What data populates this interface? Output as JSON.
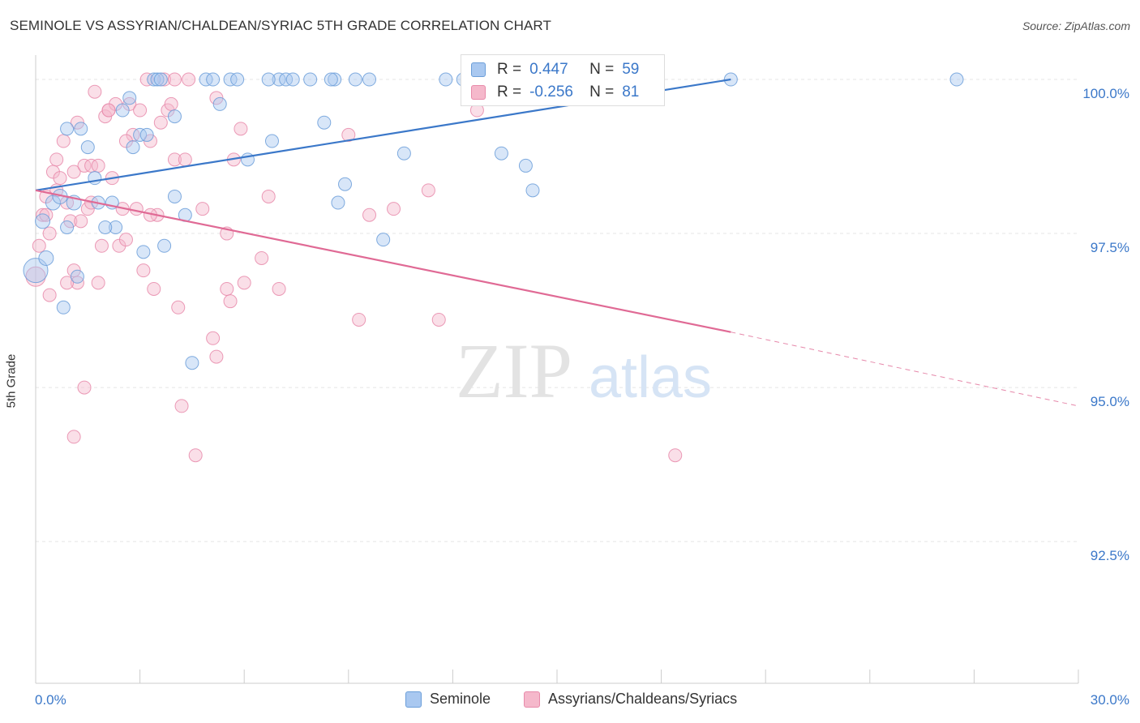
{
  "title": "SEMINOLE VS ASSYRIAN/CHALDEAN/SYRIAC 5TH GRADE CORRELATION CHART",
  "source": "Source: ZipAtlas.com",
  "watermark": {
    "zip": "ZIP",
    "atlas": "atlas"
  },
  "legend_top": {
    "rows": [
      {
        "r_label": "R =",
        "r_value": "0.447",
        "n_label": "N =",
        "n_value": "59"
      },
      {
        "r_label": "R =",
        "r_value": "-0.256",
        "n_label": "N =",
        "n_value": "81"
      }
    ]
  },
  "legend_bottom": {
    "items": [
      {
        "label": "Seminole"
      },
      {
        "label": "Assyrians/Chaldeans/Syriacs"
      }
    ]
  },
  "colors": {
    "seminole_fill": "#a9c8f0",
    "seminole_stroke": "#6b9ed9",
    "seminole_line": "#3b78c9",
    "assyrian_fill": "#f5b8cb",
    "assyrian_stroke": "#e88aaa",
    "assyrian_line": "#e06a95",
    "tick_label": "#3b78c9",
    "grid": "#e5e5e5"
  },
  "chart_data": {
    "type": "scatter",
    "ylabel": "5th Grade",
    "xlabel": "",
    "xlim": [
      0,
      30
    ],
    "ylim": [
      90.2,
      100.5
    ],
    "x_tick_labels": [
      {
        "value": 0,
        "label": "0.0%"
      },
      {
        "value": 30,
        "label": "30.0%"
      }
    ],
    "y_tick_labels": [
      {
        "value": 100,
        "label": "100.0%"
      },
      {
        "value": 97.5,
        "label": "97.5%"
      },
      {
        "value": 95,
        "label": "95.0%"
      },
      {
        "value": 92.5,
        "label": "92.5%"
      }
    ],
    "y_gridlines": [
      100,
      97.5,
      95,
      92.5
    ],
    "x_minor_ticks": [
      3,
      6,
      9,
      12,
      15,
      18,
      21,
      24,
      27,
      30
    ],
    "series": [
      {
        "name": "Seminole",
        "r": 0.447,
        "n": 59,
        "trend": {
          "x0": 0,
          "y0": 98.2,
          "x1": 20,
          "y1": 100.0
        },
        "points": [
          [
            0.0,
            96.9,
            15
          ],
          [
            0.3,
            97.1,
            9
          ],
          [
            0.5,
            98.0,
            9
          ],
          [
            0.2,
            97.7,
            9
          ],
          [
            0.9,
            97.6,
            8
          ],
          [
            0.7,
            98.1,
            9
          ],
          [
            1.1,
            98.0,
            9
          ],
          [
            0.9,
            99.2,
            8
          ],
          [
            1.3,
            99.2,
            8
          ],
          [
            1.5,
            98.9,
            8
          ],
          [
            1.8,
            98.0,
            8
          ],
          [
            2.3,
            97.6,
            8
          ],
          [
            2.5,
            99.5,
            8
          ],
          [
            2.7,
            99.7,
            8
          ],
          [
            2.8,
            98.9,
            8
          ],
          [
            3.0,
            99.1,
            8
          ],
          [
            3.2,
            99.1,
            8
          ],
          [
            3.1,
            97.2,
            8
          ],
          [
            3.4,
            100.0,
            8
          ],
          [
            3.5,
            100.0,
            8
          ],
          [
            3.7,
            97.3,
            8
          ],
          [
            4.0,
            99.4,
            8
          ],
          [
            4.0,
            98.1,
            8
          ],
          [
            4.3,
            97.8,
            8
          ],
          [
            4.5,
            95.4,
            8
          ],
          [
            4.9,
            100.0,
            8
          ],
          [
            5.1,
            100.0,
            8
          ],
          [
            5.3,
            99.6,
            8
          ],
          [
            5.6,
            100.0,
            8
          ],
          [
            5.8,
            100.0,
            8
          ],
          [
            6.1,
            98.7,
            8
          ],
          [
            6.8,
            99.0,
            8
          ],
          [
            7.0,
            100.0,
            8
          ],
          [
            7.2,
            100.0,
            8
          ],
          [
            7.4,
            100.0,
            8
          ],
          [
            7.9,
            100.0,
            8
          ],
          [
            8.3,
            99.3,
            8
          ],
          [
            8.6,
            100.0,
            8
          ],
          [
            8.7,
            98.0,
            8
          ],
          [
            8.9,
            98.3,
            8
          ],
          [
            9.2,
            100.0,
            8
          ],
          [
            10.0,
            97.4,
            8
          ],
          [
            10.6,
            98.8,
            8
          ],
          [
            11.8,
            100.0,
            8
          ],
          [
            12.3,
            100.0,
            8
          ],
          [
            13.4,
            98.8,
            8
          ],
          [
            14.1,
            98.6,
            8
          ],
          [
            14.3,
            98.2,
            8
          ],
          [
            20.0,
            100.0,
            8
          ],
          [
            26.5,
            100.0,
            8
          ],
          [
            1.7,
            98.4,
            8
          ],
          [
            2.0,
            97.6,
            8
          ],
          [
            1.2,
            96.8,
            8
          ],
          [
            0.8,
            96.3,
            8
          ],
          [
            2.2,
            98.0,
            8
          ],
          [
            6.7,
            100.0,
            8
          ],
          [
            8.5,
            100.0,
            8
          ],
          [
            9.6,
            100.0,
            8
          ],
          [
            3.6,
            100.0,
            8
          ]
        ]
      },
      {
        "name": "Assyrians/Chaldeans/Syriacs",
        "r": -0.256,
        "n": 81,
        "trend": {
          "x0": 0,
          "y0": 98.2,
          "x1": 20,
          "y1": 95.9,
          "dash_to_x": 30,
          "dash_to_y": 94.7
        },
        "points": [
          [
            0.0,
            96.8,
            12
          ],
          [
            0.1,
            97.3,
            8
          ],
          [
            0.2,
            97.8,
            8
          ],
          [
            0.3,
            98.1,
            8
          ],
          [
            0.4,
            97.5,
            8
          ],
          [
            0.5,
            98.5,
            8
          ],
          [
            0.6,
            98.7,
            8
          ],
          [
            0.4,
            96.5,
            8
          ],
          [
            0.7,
            98.4,
            8
          ],
          [
            0.8,
            99.0,
            8
          ],
          [
            0.9,
            98.0,
            8
          ],
          [
            1.0,
            97.7,
            8
          ],
          [
            1.1,
            98.5,
            8
          ],
          [
            1.2,
            99.3,
            8
          ],
          [
            1.3,
            97.7,
            8
          ],
          [
            1.4,
            98.6,
            8
          ],
          [
            1.5,
            97.9,
            8
          ],
          [
            1.6,
            98.6,
            8
          ],
          [
            1.7,
            99.8,
            8
          ],
          [
            1.8,
            98.6,
            8
          ],
          [
            1.9,
            97.3,
            8
          ],
          [
            2.0,
            99.4,
            8
          ],
          [
            2.1,
            99.5,
            8
          ],
          [
            2.2,
            98.4,
            8
          ],
          [
            2.3,
            99.6,
            8
          ],
          [
            2.4,
            97.3,
            8
          ],
          [
            2.5,
            97.9,
            8
          ],
          [
            2.6,
            97.4,
            8
          ],
          [
            2.7,
            99.6,
            8
          ],
          [
            2.8,
            99.1,
            8
          ],
          [
            2.9,
            97.9,
            8
          ],
          [
            3.0,
            99.5,
            8
          ],
          [
            3.1,
            96.9,
            8
          ],
          [
            3.2,
            100.0,
            8
          ],
          [
            3.3,
            99.0,
            8
          ],
          [
            3.4,
            96.6,
            8
          ],
          [
            3.5,
            97.8,
            8
          ],
          [
            3.6,
            99.3,
            8
          ],
          [
            3.7,
            100.0,
            8
          ],
          [
            3.8,
            99.5,
            8
          ],
          [
            3.9,
            99.6,
            8
          ],
          [
            4.0,
            98.7,
            8
          ],
          [
            4.1,
            96.3,
            8
          ],
          [
            4.2,
            94.7,
            8
          ],
          [
            4.3,
            98.7,
            8
          ],
          [
            4.4,
            100.0,
            8
          ],
          [
            4.6,
            93.9,
            8
          ],
          [
            4.8,
            97.9,
            8
          ],
          [
            5.1,
            95.8,
            8
          ],
          [
            5.2,
            95.5,
            8
          ],
          [
            5.2,
            99.7,
            8
          ],
          [
            5.5,
            96.6,
            8
          ],
          [
            5.5,
            97.5,
            8
          ],
          [
            5.7,
            98.7,
            8
          ],
          [
            5.6,
            96.4,
            8
          ],
          [
            5.9,
            99.2,
            8
          ],
          [
            6.0,
            96.7,
            8
          ],
          [
            6.5,
            97.1,
            8
          ],
          [
            6.7,
            98.1,
            8
          ],
          [
            7.0,
            96.6,
            8
          ],
          [
            9.0,
            99.1,
            8
          ],
          [
            9.3,
            96.1,
            8
          ],
          [
            9.6,
            97.8,
            8
          ],
          [
            10.3,
            97.9,
            8
          ],
          [
            11.3,
            98.2,
            8
          ],
          [
            11.6,
            96.1,
            8
          ],
          [
            12.7,
            99.5,
            8
          ],
          [
            18.4,
            93.9,
            8
          ],
          [
            1.1,
            94.2,
            8
          ],
          [
            1.4,
            95.0,
            8
          ],
          [
            0.6,
            98.2,
            8
          ],
          [
            1.2,
            96.7,
            8
          ],
          [
            1.8,
            96.7,
            8
          ],
          [
            0.9,
            96.7,
            8
          ],
          [
            1.1,
            96.9,
            8
          ],
          [
            2.6,
            99.0,
            8
          ],
          [
            4.0,
            100.0,
            8
          ],
          [
            3.3,
            97.8,
            8
          ],
          [
            0.3,
            97.8,
            8
          ],
          [
            1.6,
            98.0,
            8
          ],
          [
            2.1,
            99.5,
            8
          ]
        ]
      }
    ]
  }
}
